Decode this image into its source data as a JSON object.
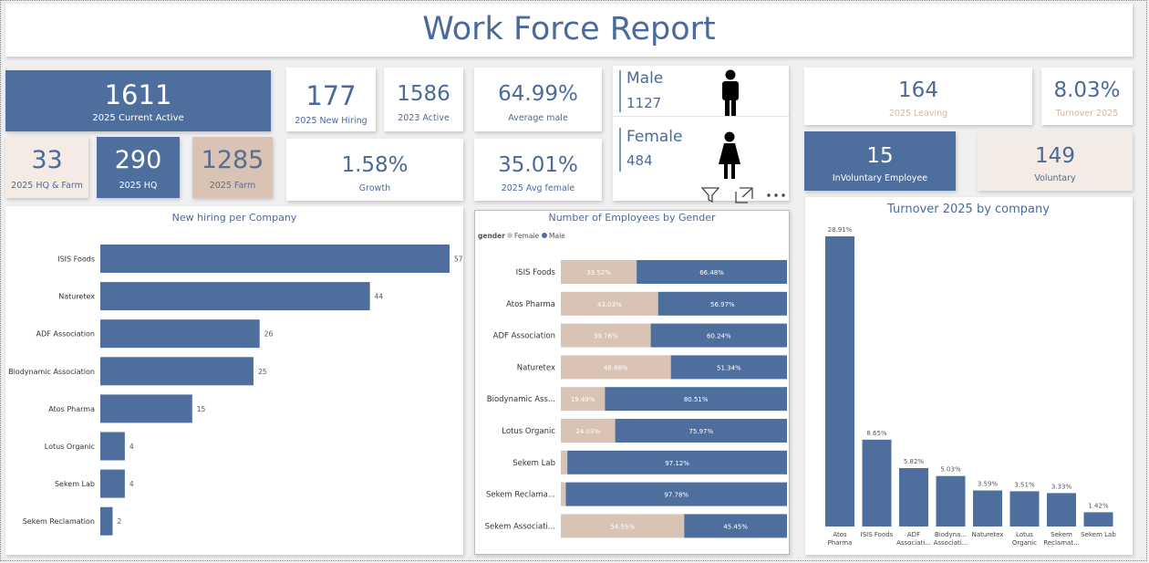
{
  "title": "Work Force Report",
  "kpis": {
    "current_active": {
      "value": "1611",
      "label": "2025 Current Active"
    },
    "hq_farm": {
      "value": "33",
      "label": "2025 HQ & Farm"
    },
    "hq": {
      "value": "290",
      "label": "2025 HQ"
    },
    "farm": {
      "value": "1285",
      "label": "2025 Farm"
    },
    "new_hiring": {
      "value": "177",
      "label": "2025 New Hiring"
    },
    "active_2023": {
      "value": "1586",
      "label": "2023 Active"
    },
    "growth": {
      "value": "1.58%",
      "label": "Growth"
    },
    "avg_male": {
      "value": "64.99%",
      "label": "Average male"
    },
    "avg_female": {
      "value": "35.01%",
      "label": "2025 Avg female"
    },
    "leaving": {
      "value": "164",
      "label": "2025 Leaving"
    },
    "turnover": {
      "value": "8.03%",
      "label": "Turnover 2025"
    },
    "involuntary": {
      "value": "15",
      "label": "InVoluntary Employee"
    },
    "voluntary": {
      "value": "149",
      "label": "Voluntary"
    }
  },
  "gender_card": {
    "male_label": "Male",
    "male_value": "1127",
    "female_label": "Female",
    "female_value": "484",
    "icons": [
      "male-person-icon",
      "female-person-icon",
      "filter-icon",
      "focus-mode-icon",
      "more-options-icon"
    ]
  },
  "colors": {
    "blue": "#4e6f9e",
    "tan": "#d8c3b4",
    "cream": "#f4ebe4",
    "title": "#4a6a9a"
  },
  "chart_data": [
    {
      "type": "bar",
      "orientation": "horizontal",
      "title": "New hiring per Company",
      "categories": [
        "ISIS Foods",
        "Naturetex",
        "ADF Association",
        "Biodynamic Association",
        "Atos Pharma",
        "Lotus Organic",
        "Sekem Lab",
        "Sekem Reclamation"
      ],
      "values": [
        57,
        44,
        26,
        25,
        15,
        4,
        4,
        2
      ],
      "xlim": [
        0,
        57
      ]
    },
    {
      "type": "bar",
      "orientation": "horizontal",
      "stacked": "100%",
      "title": "Number of Employees by Gender",
      "legend_title": "gender",
      "legend_position": "top-left",
      "categories": [
        "ISIS Foods",
        "Atos Pharma",
        "ADF Association",
        "Naturetex",
        "Biodynamic Ass...",
        "Lotus Organic",
        "Sekem Lab",
        "Sekem Reclama...",
        "Sekem Associati..."
      ],
      "series": [
        {
          "name": "Female",
          "values": [
            33.52,
            43.03,
            39.76,
            48.66,
            19.49,
            24.03,
            2.88,
            2.22,
            54.55
          ],
          "labels": [
            "33.52%",
            "43.03%",
            "39.76%",
            "48.66%",
            "19.49%",
            "24.03%",
            "",
            "",
            "54.55%"
          ]
        },
        {
          "name": "Male",
          "values": [
            66.48,
            56.97,
            60.24,
            51.34,
            80.51,
            75.97,
            97.12,
            97.78,
            45.45
          ],
          "labels": [
            "66.48%",
            "56.97%",
            "60.24%",
            "51.34%",
            "80.51%",
            "75.97%",
            "97.12%",
            "97.78%",
            "45.45%"
          ]
        }
      ]
    },
    {
      "type": "bar",
      "title": "Turnover 2025 by company",
      "categories": [
        "Atos Pharma",
        "ISIS Foods",
        "ADF Associati...",
        "Biodyna... Associati...",
        "Naturetex",
        "Lotus Organic",
        "Sekem Reclamat...",
        "Sekem Lab"
      ],
      "values": [
        28.91,
        8.65,
        5.82,
        5.03,
        3.59,
        3.51,
        3.33,
        1.42
      ],
      "labels": [
        "28.91%",
        "8.65%",
        "5.82%",
        "5.03%",
        "3.59%",
        "3.51%",
        "3.33%",
        "1.42%"
      ],
      "ylim": [
        0,
        28.91
      ]
    }
  ]
}
